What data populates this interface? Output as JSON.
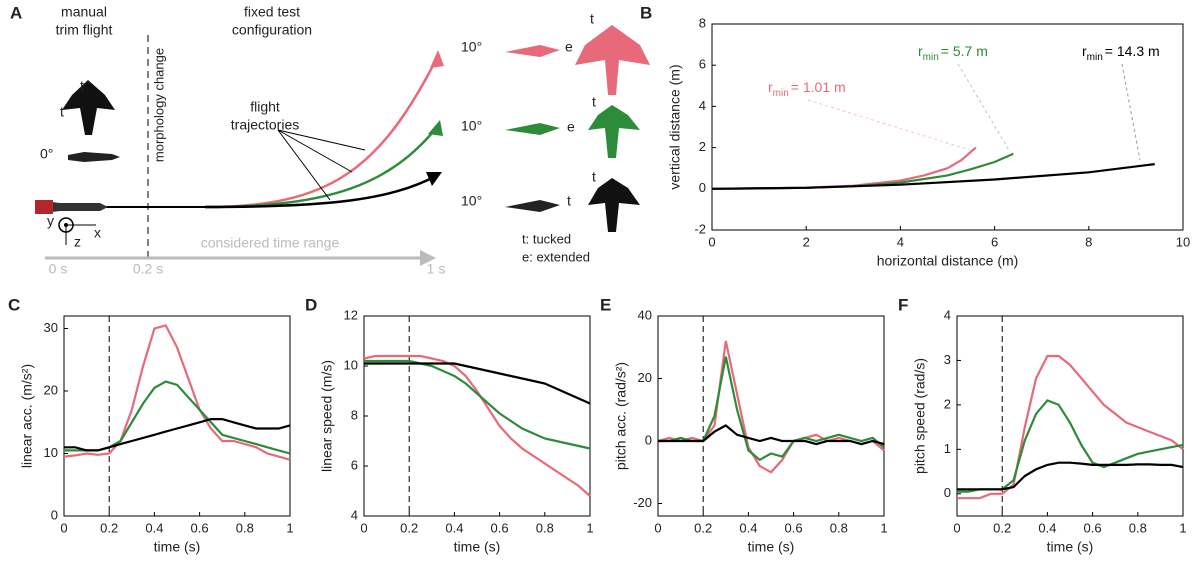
{
  "diagram": {
    "panel": "A",
    "trim_label": [
      "manual",
      "trim flight"
    ],
    "morphology_label": "morphology change",
    "config_label": [
      "fixed test",
      "configuration"
    ],
    "trajectory_label": [
      "flight",
      "trajectories"
    ],
    "time_label": "considered time range",
    "time_marks": [
      "0 s",
      "0.2 s",
      "1 s"
    ],
    "angle_trim": "0°",
    "angles": [
      "10°",
      "10°",
      "10°"
    ],
    "wing_letters": [
      [
        "t",
        "e"
      ],
      [
        "t",
        "e"
      ],
      [
        "t",
        "t"
      ]
    ],
    "trim_letters": [
      "t",
      "t"
    ],
    "axes_letters": [
      "y",
      "z",
      "x"
    ],
    "legend": [
      "t: tucked",
      "e: extended"
    ]
  },
  "chart_data": [
    {
      "type": "line",
      "panel": "B",
      "xlabel": "horizontal distance (m)",
      "ylabel": "vertical distance (m)",
      "xlim": [
        0,
        10
      ],
      "ylim": [
        -2,
        8
      ],
      "xticks": [
        0,
        2,
        4,
        6,
        8,
        10
      ],
      "yticks": [
        -2,
        0,
        2,
        4,
        6,
        8
      ],
      "series": [
        {
          "color": "#e8697a",
          "x": [
            0,
            1,
            2,
            3,
            4,
            4.5,
            5,
            5.3,
            5.6
          ],
          "values": [
            0,
            0.02,
            0.06,
            0.15,
            0.4,
            0.65,
            1.0,
            1.4,
            2.0
          ]
        },
        {
          "color": "#2e8b3a",
          "x": [
            0,
            1,
            2,
            3,
            4,
            5,
            5.5,
            6,
            6.4
          ],
          "values": [
            0,
            0.02,
            0.05,
            0.12,
            0.3,
            0.65,
            0.95,
            1.3,
            1.7
          ]
        },
        {
          "color": "#000000",
          "x": [
            0,
            2,
            4,
            6,
            8,
            9.4
          ],
          "values": [
            0,
            0.05,
            0.2,
            0.45,
            0.8,
            1.2
          ]
        }
      ],
      "annotations": [
        {
          "text": "r",
          "sub": "min",
          "rest": "= 1.01 m",
          "color": "#e8697a"
        },
        {
          "text": "r",
          "sub": "min",
          "rest": "= 5.7 m",
          "color": "#2e8b3a"
        },
        {
          "text": "r",
          "sub": "min",
          "rest": "= 14.3 m",
          "color": "#000000"
        }
      ]
    },
    {
      "type": "line",
      "panel": "C",
      "xlabel": "time (s)",
      "ylabel": "linear acc. (m/s²)",
      "xlim": [
        0,
        1
      ],
      "ylim": [
        0,
        32
      ],
      "xticks": [
        0,
        0.2,
        0.4,
        0.6,
        0.8,
        1
      ],
      "yticks": [
        0,
        10,
        20,
        30
      ],
      "vline": 0.2,
      "x": [
        0,
        0.05,
        0.1,
        0.15,
        0.2,
        0.25,
        0.3,
        0.35,
        0.4,
        0.45,
        0.5,
        0.55,
        0.6,
        0.65,
        0.7,
        0.75,
        0.8,
        0.85,
        0.9,
        0.95,
        1
      ],
      "series": [
        {
          "color": "#e8697a",
          "values": [
            9.5,
            9.7,
            10,
            9.8,
            10,
            12,
            17,
            24,
            30,
            30.5,
            27,
            22,
            17,
            14,
            12,
            12,
            11.5,
            11,
            10,
            9.5,
            9
          ]
        },
        {
          "color": "#2e8b3a",
          "values": [
            10.5,
            10.5,
            10.5,
            10.5,
            11,
            12,
            15,
            18,
            20.5,
            21.5,
            21,
            19,
            17,
            15,
            13,
            12.5,
            12,
            11.5,
            11,
            10.5,
            10
          ]
        },
        {
          "color": "#000000",
          "values": [
            11,
            11,
            10.5,
            10.5,
            11,
            11.5,
            12,
            12.5,
            13,
            13.5,
            14,
            14.5,
            15,
            15.5,
            15.5,
            15,
            14.5,
            14,
            14,
            14,
            14.5
          ]
        }
      ]
    },
    {
      "type": "line",
      "panel": "D",
      "xlabel": "time (s)",
      "ylabel": "linear speed (m/s)",
      "xlim": [
        0,
        1
      ],
      "ylim": [
        4,
        12
      ],
      "xticks": [
        0,
        0.2,
        0.4,
        0.6,
        0.8,
        1
      ],
      "yticks": [
        4,
        6,
        8,
        10,
        12
      ],
      "vline": 0.2,
      "x": [
        0,
        0.05,
        0.1,
        0.15,
        0.2,
        0.25,
        0.3,
        0.35,
        0.4,
        0.45,
        0.5,
        0.55,
        0.6,
        0.65,
        0.7,
        0.75,
        0.8,
        0.85,
        0.9,
        0.95,
        1
      ],
      "series": [
        {
          "color": "#e8697a",
          "values": [
            10.3,
            10.4,
            10.4,
            10.4,
            10.4,
            10.4,
            10.3,
            10.2,
            10,
            9.6,
            9,
            8.3,
            7.6,
            7.1,
            6.7,
            6.4,
            6.1,
            5.8,
            5.5,
            5.2,
            4.8
          ]
        },
        {
          "color": "#2e8b3a",
          "values": [
            10.2,
            10.2,
            10.2,
            10.2,
            10.2,
            10.1,
            10,
            9.8,
            9.6,
            9.3,
            8.9,
            8.5,
            8.1,
            7.8,
            7.5,
            7.3,
            7.1,
            7,
            6.9,
            6.8,
            6.7
          ]
        },
        {
          "color": "#000000",
          "values": [
            10.1,
            10.1,
            10.1,
            10.1,
            10.1,
            10.1,
            10.1,
            10.1,
            10.1,
            10,
            9.9,
            9.8,
            9.7,
            9.6,
            9.5,
            9.4,
            9.3,
            9.1,
            8.9,
            8.7,
            8.5
          ]
        }
      ]
    },
    {
      "type": "line",
      "panel": "E",
      "xlabel": "time (s)",
      "ylabel": "pitch acc. (rad/s²)",
      "xlim": [
        0,
        1
      ],
      "ylim": [
        -24,
        40
      ],
      "xticks": [
        0,
        0.2,
        0.4,
        0.6,
        0.8,
        1
      ],
      "yticks": [
        -20,
        0,
        20,
        40
      ],
      "vline": 0.2,
      "x": [
        0,
        0.05,
        0.1,
        0.15,
        0.2,
        0.25,
        0.3,
        0.35,
        0.4,
        0.45,
        0.5,
        0.55,
        0.6,
        0.65,
        0.7,
        0.75,
        0.8,
        0.85,
        0.9,
        0.95,
        1
      ],
      "series": [
        {
          "color": "#e8697a",
          "values": [
            0,
            1,
            0,
            1,
            0,
            5,
            32,
            15,
            -2,
            -8,
            -10,
            -6,
            0,
            1,
            2,
            0,
            1,
            0,
            -1,
            0,
            -3
          ]
        },
        {
          "color": "#2e8b3a",
          "values": [
            0,
            0,
            1,
            0,
            0,
            8,
            27,
            10,
            -3,
            -6,
            -4,
            -5,
            0,
            1,
            0,
            1,
            2,
            1,
            0,
            1,
            -2
          ]
        },
        {
          "color": "#000000",
          "values": [
            0,
            0,
            0,
            0,
            0,
            3,
            5,
            2,
            1,
            0,
            1,
            0,
            0,
            0,
            -1,
            0,
            0,
            0,
            -1,
            0,
            -1
          ]
        }
      ]
    },
    {
      "type": "line",
      "panel": "F",
      "xlabel": "time (s)",
      "ylabel": "pitch speed  (rad/s)",
      "xlim": [
        0,
        1
      ],
      "ylim": [
        -0.5,
        4
      ],
      "xticks": [
        0,
        0.2,
        0.4,
        0.6,
        0.8,
        1
      ],
      "yticks": [
        0,
        1,
        2,
        3,
        4
      ],
      "vline": 0.2,
      "x": [
        0,
        0.05,
        0.1,
        0.15,
        0.2,
        0.25,
        0.3,
        0.35,
        0.4,
        0.45,
        0.5,
        0.55,
        0.6,
        0.65,
        0.7,
        0.75,
        0.8,
        0.85,
        0.9,
        0.95,
        1
      ],
      "series": [
        {
          "color": "#e8697a",
          "values": [
            -0.1,
            -0.1,
            -0.1,
            0,
            0,
            0.2,
            1.5,
            2.6,
            3.1,
            3.1,
            2.9,
            2.6,
            2.3,
            2,
            1.8,
            1.6,
            1.5,
            1.4,
            1.3,
            1.2,
            1.0
          ]
        },
        {
          "color": "#2e8b3a",
          "values": [
            0.05,
            0.05,
            0.1,
            0.1,
            0.1,
            0.3,
            1.2,
            1.8,
            2.1,
            2.0,
            1.6,
            1.1,
            0.7,
            0.6,
            0.7,
            0.8,
            0.9,
            0.95,
            1.0,
            1.05,
            1.1
          ]
        },
        {
          "color": "#000000",
          "values": [
            0.1,
            0.1,
            0.1,
            0.1,
            0.1,
            0.15,
            0.4,
            0.55,
            0.65,
            0.7,
            0.7,
            0.68,
            0.65,
            0.65,
            0.65,
            0.65,
            0.66,
            0.66,
            0.65,
            0.65,
            0.6
          ]
        }
      ]
    }
  ]
}
